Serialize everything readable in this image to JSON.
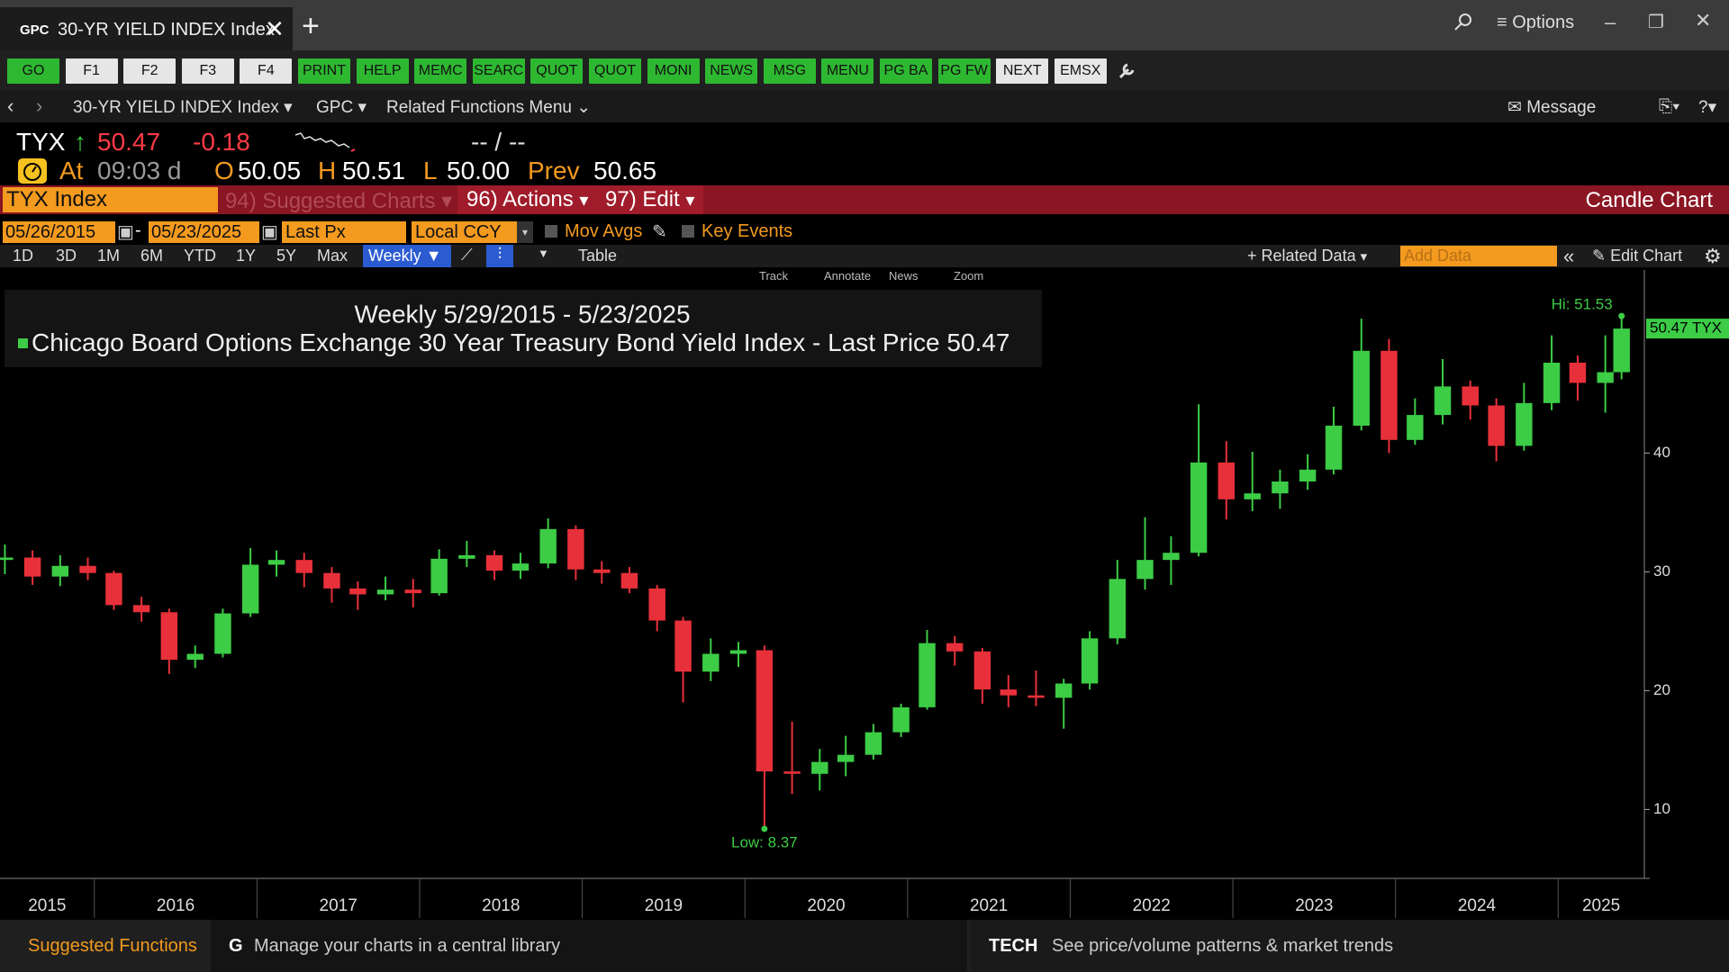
{
  "tab": {
    "code": "GPC",
    "title": "30-YR YIELD INDEX Index"
  },
  "window": {
    "options": "Options"
  },
  "toolbar": [
    "GO",
    "F1",
    "F2",
    "F3",
    "F4",
    "PRINT",
    "HELP",
    "MEMC",
    "SEARC",
    "QUOT",
    "QUOT",
    "MONI",
    "NEWS",
    "MSG",
    "MENU",
    "PG BA",
    "PG FW",
    "NEXT",
    "EMSX"
  ],
  "nav": {
    "security": "30-YR YIELD INDEX Index",
    "source": "GPC",
    "menu": "Related Functions Menu",
    "message": "Message"
  },
  "quote": {
    "ticker": "TYX",
    "last": "50.47",
    "change": "-0.18",
    "bid_ask": "-- / --",
    "at_label": "At",
    "time": "09:03 d",
    "open_label": "O",
    "open": "50.05",
    "high_label": "H",
    "high": "50.51",
    "low_label": "L",
    "low": "50.00",
    "prev_label": "Prev",
    "prev": "50.65"
  },
  "function_bar": {
    "security": "TYX Index",
    "suggested": "94) Suggested Charts",
    "actions": "96) Actions",
    "edit": "97) Edit",
    "view": "Candle Chart"
  },
  "controls": {
    "start_date": "05/26/2015",
    "end_date": "05/23/2025",
    "field": "Last Px",
    "currency": "Local CCY",
    "mov_avgs": "Mov Avgs",
    "key_events": "Key Events",
    "periods": [
      "1D",
      "3D",
      "1M",
      "6M",
      "YTD",
      "1Y",
      "5Y",
      "Max"
    ],
    "frequency": "Weekly",
    "table": "Table",
    "related": "Related Data",
    "add_data": "Add Data",
    "edit_chart": "Edit Chart"
  },
  "chart_tools": [
    "Track",
    "Annotate",
    "News",
    "Zoom"
  ],
  "chart_data": {
    "type": "candlestick",
    "title": "Weekly 5/29/2015 - 5/23/2025",
    "legend": "Chicago Board Options Exchange 30 Year Treasury Bond Yield Index - Last Price",
    "last_value": 50.47,
    "last_price_label": "50.47 TYX",
    "hi_label": "Hi: 51.53",
    "low_label": "Low: 8.37",
    "color_up": "#3ccc46",
    "color_down": "#e8303a",
    "x": [
      2015.45,
      2015.62,
      2015.79,
      2015.96,
      2016.12,
      2016.29,
      2016.46,
      2016.62,
      2016.79,
      2016.96,
      2017.12,
      2017.29,
      2017.46,
      2017.62,
      2017.79,
      2017.96,
      2018.12,
      2018.29,
      2018.46,
      2018.62,
      2018.79,
      2018.96,
      2019.12,
      2019.29,
      2019.46,
      2019.62,
      2019.79,
      2019.96,
      2020.12,
      2020.29,
      2020.46,
      2020.62,
      2020.79,
      2020.96,
      2021.12,
      2021.29,
      2021.46,
      2021.62,
      2021.79,
      2021.96,
      2022.12,
      2022.29,
      2022.46,
      2022.62,
      2022.79,
      2022.96,
      2023.12,
      2023.29,
      2023.46,
      2023.62,
      2023.79,
      2023.96,
      2024.12,
      2024.29,
      2024.46,
      2024.62,
      2024.79,
      2024.96,
      2025.12,
      2025.29,
      2025.39
    ],
    "open": [
      31.0,
      31.2,
      29.6,
      30.5,
      29.9,
      27.2,
      26.6,
      22.6,
      23.1,
      26.5,
      30.6,
      31.0,
      29.9,
      28.6,
      28.1,
      28.5,
      28.2,
      31.1,
      31.4,
      30.1,
      30.7,
      33.6,
      30.2,
      29.9,
      28.6,
      25.9,
      21.6,
      23.1,
      23.4,
      13.2,
      13.0,
      14.0,
      14.6,
      16.5,
      18.6,
      24.0,
      23.3,
      20.1,
      19.6,
      19.4,
      20.6,
      24.4,
      29.4,
      31.0,
      31.6,
      39.2,
      36.1,
      36.6,
      37.6,
      38.6,
      42.3,
      48.6,
      41.1,
      43.2,
      45.6,
      44.0,
      40.6,
      44.2,
      47.6,
      45.9,
      46.8
    ],
    "high": [
      32.3,
      31.8,
      31.4,
      31.2,
      30.1,
      27.9,
      26.9,
      23.8,
      26.9,
      32.0,
      31.8,
      31.6,
      30.4,
      29.2,
      29.6,
      29.4,
      31.9,
      32.6,
      31.8,
      31.6,
      34.5,
      33.9,
      30.9,
      30.4,
      28.9,
      26.2,
      24.4,
      24.1,
      23.8,
      17.4,
      15.1,
      16.2,
      17.2,
      18.9,
      25.1,
      24.6,
      23.6,
      21.3,
      21.7,
      21.0,
      25.0,
      31.0,
      34.6,
      33.0,
      44.1,
      41.0,
      40.1,
      38.6,
      39.9,
      43.9,
      51.3,
      49.6,
      44.6,
      47.9,
      46.1,
      44.6,
      45.9,
      49.9,
      48.2,
      49.9,
      51.53
    ],
    "low": [
      29.8,
      28.9,
      28.8,
      29.3,
      26.8,
      25.8,
      21.4,
      21.9,
      22.8,
      26.2,
      29.6,
      28.7,
      27.4,
      26.8,
      27.6,
      27.0,
      28.0,
      30.4,
      29.3,
      29.4,
      30.3,
      29.3,
      29.0,
      28.2,
      25.0,
      19.0,
      20.8,
      22.0,
      8.37,
      11.3,
      11.6,
      12.8,
      14.2,
      16.1,
      18.4,
      22.1,
      18.9,
      18.6,
      18.7,
      16.8,
      20.1,
      23.9,
      28.5,
      28.9,
      31.3,
      34.4,
      35.1,
      35.3,
      36.9,
      38.2,
      41.9,
      40.0,
      40.7,
      42.4,
      42.8,
      39.3,
      40.2,
      43.6,
      44.4,
      43.4,
      46.2
    ],
    "close": [
      31.2,
      29.6,
      30.5,
      29.9,
      27.2,
      26.6,
      22.6,
      23.1,
      26.5,
      30.6,
      31.0,
      29.9,
      28.6,
      28.1,
      28.5,
      28.2,
      31.1,
      31.4,
      30.1,
      30.7,
      33.6,
      30.2,
      29.9,
      28.6,
      25.9,
      21.6,
      23.1,
      23.4,
      13.2,
      13.0,
      14.0,
      14.6,
      16.5,
      18.6,
      24.0,
      23.3,
      20.1,
      19.6,
      19.4,
      20.6,
      24.4,
      29.4,
      31.0,
      31.6,
      39.2,
      36.1,
      36.6,
      37.6,
      38.6,
      42.3,
      48.6,
      41.1,
      43.2,
      45.6,
      44.0,
      40.6,
      44.2,
      47.6,
      45.9,
      46.8,
      50.47
    ],
    "xlim": [
      2015.42,
      2025.53
    ],
    "xticks": [
      2015,
      2016,
      2017,
      2018,
      2019,
      2020,
      2021,
      2022,
      2023,
      2024,
      2025
    ],
    "ylim": [
      4.2,
      55.4
    ],
    "yticks": [
      10,
      20,
      30,
      40
    ],
    "grid": false
  },
  "footer": {
    "suggested": "Suggested Functions",
    "g_key": "G",
    "g_text": "Manage your charts in a central library",
    "tech_key": "TECH",
    "tech_text": "See price/volume patterns & market trends"
  }
}
